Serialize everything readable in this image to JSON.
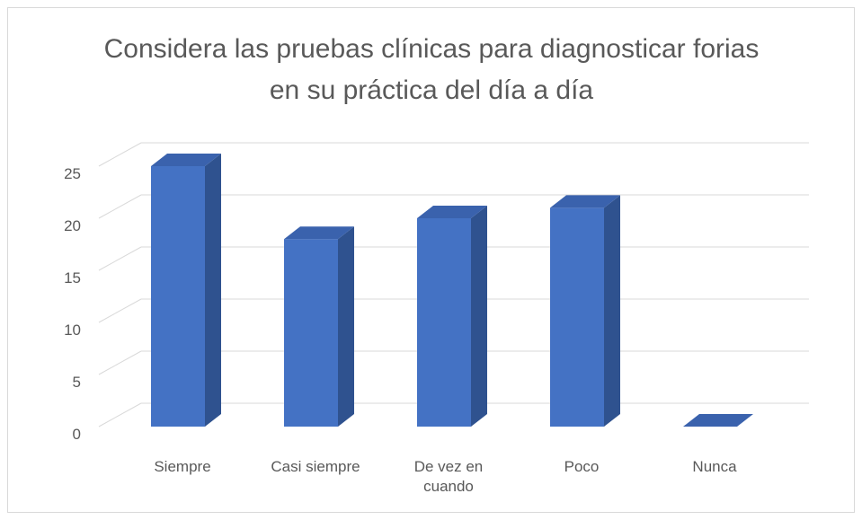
{
  "chart_data": {
    "type": "bar3d",
    "title": "Considera las pruebas clínicas para diagnosticar forias en su práctica del día a día",
    "categories": [
      "Siempre",
      "Casi siempre",
      "De vez en cuando",
      "Poco",
      "Nunca"
    ],
    "values": [
      25,
      18,
      20,
      21,
      0
    ],
    "color": "#4472c4",
    "ylim": [
      0,
      25
    ],
    "yticks": [
      0,
      5,
      10,
      15,
      20,
      25
    ],
    "grid": true
  }
}
